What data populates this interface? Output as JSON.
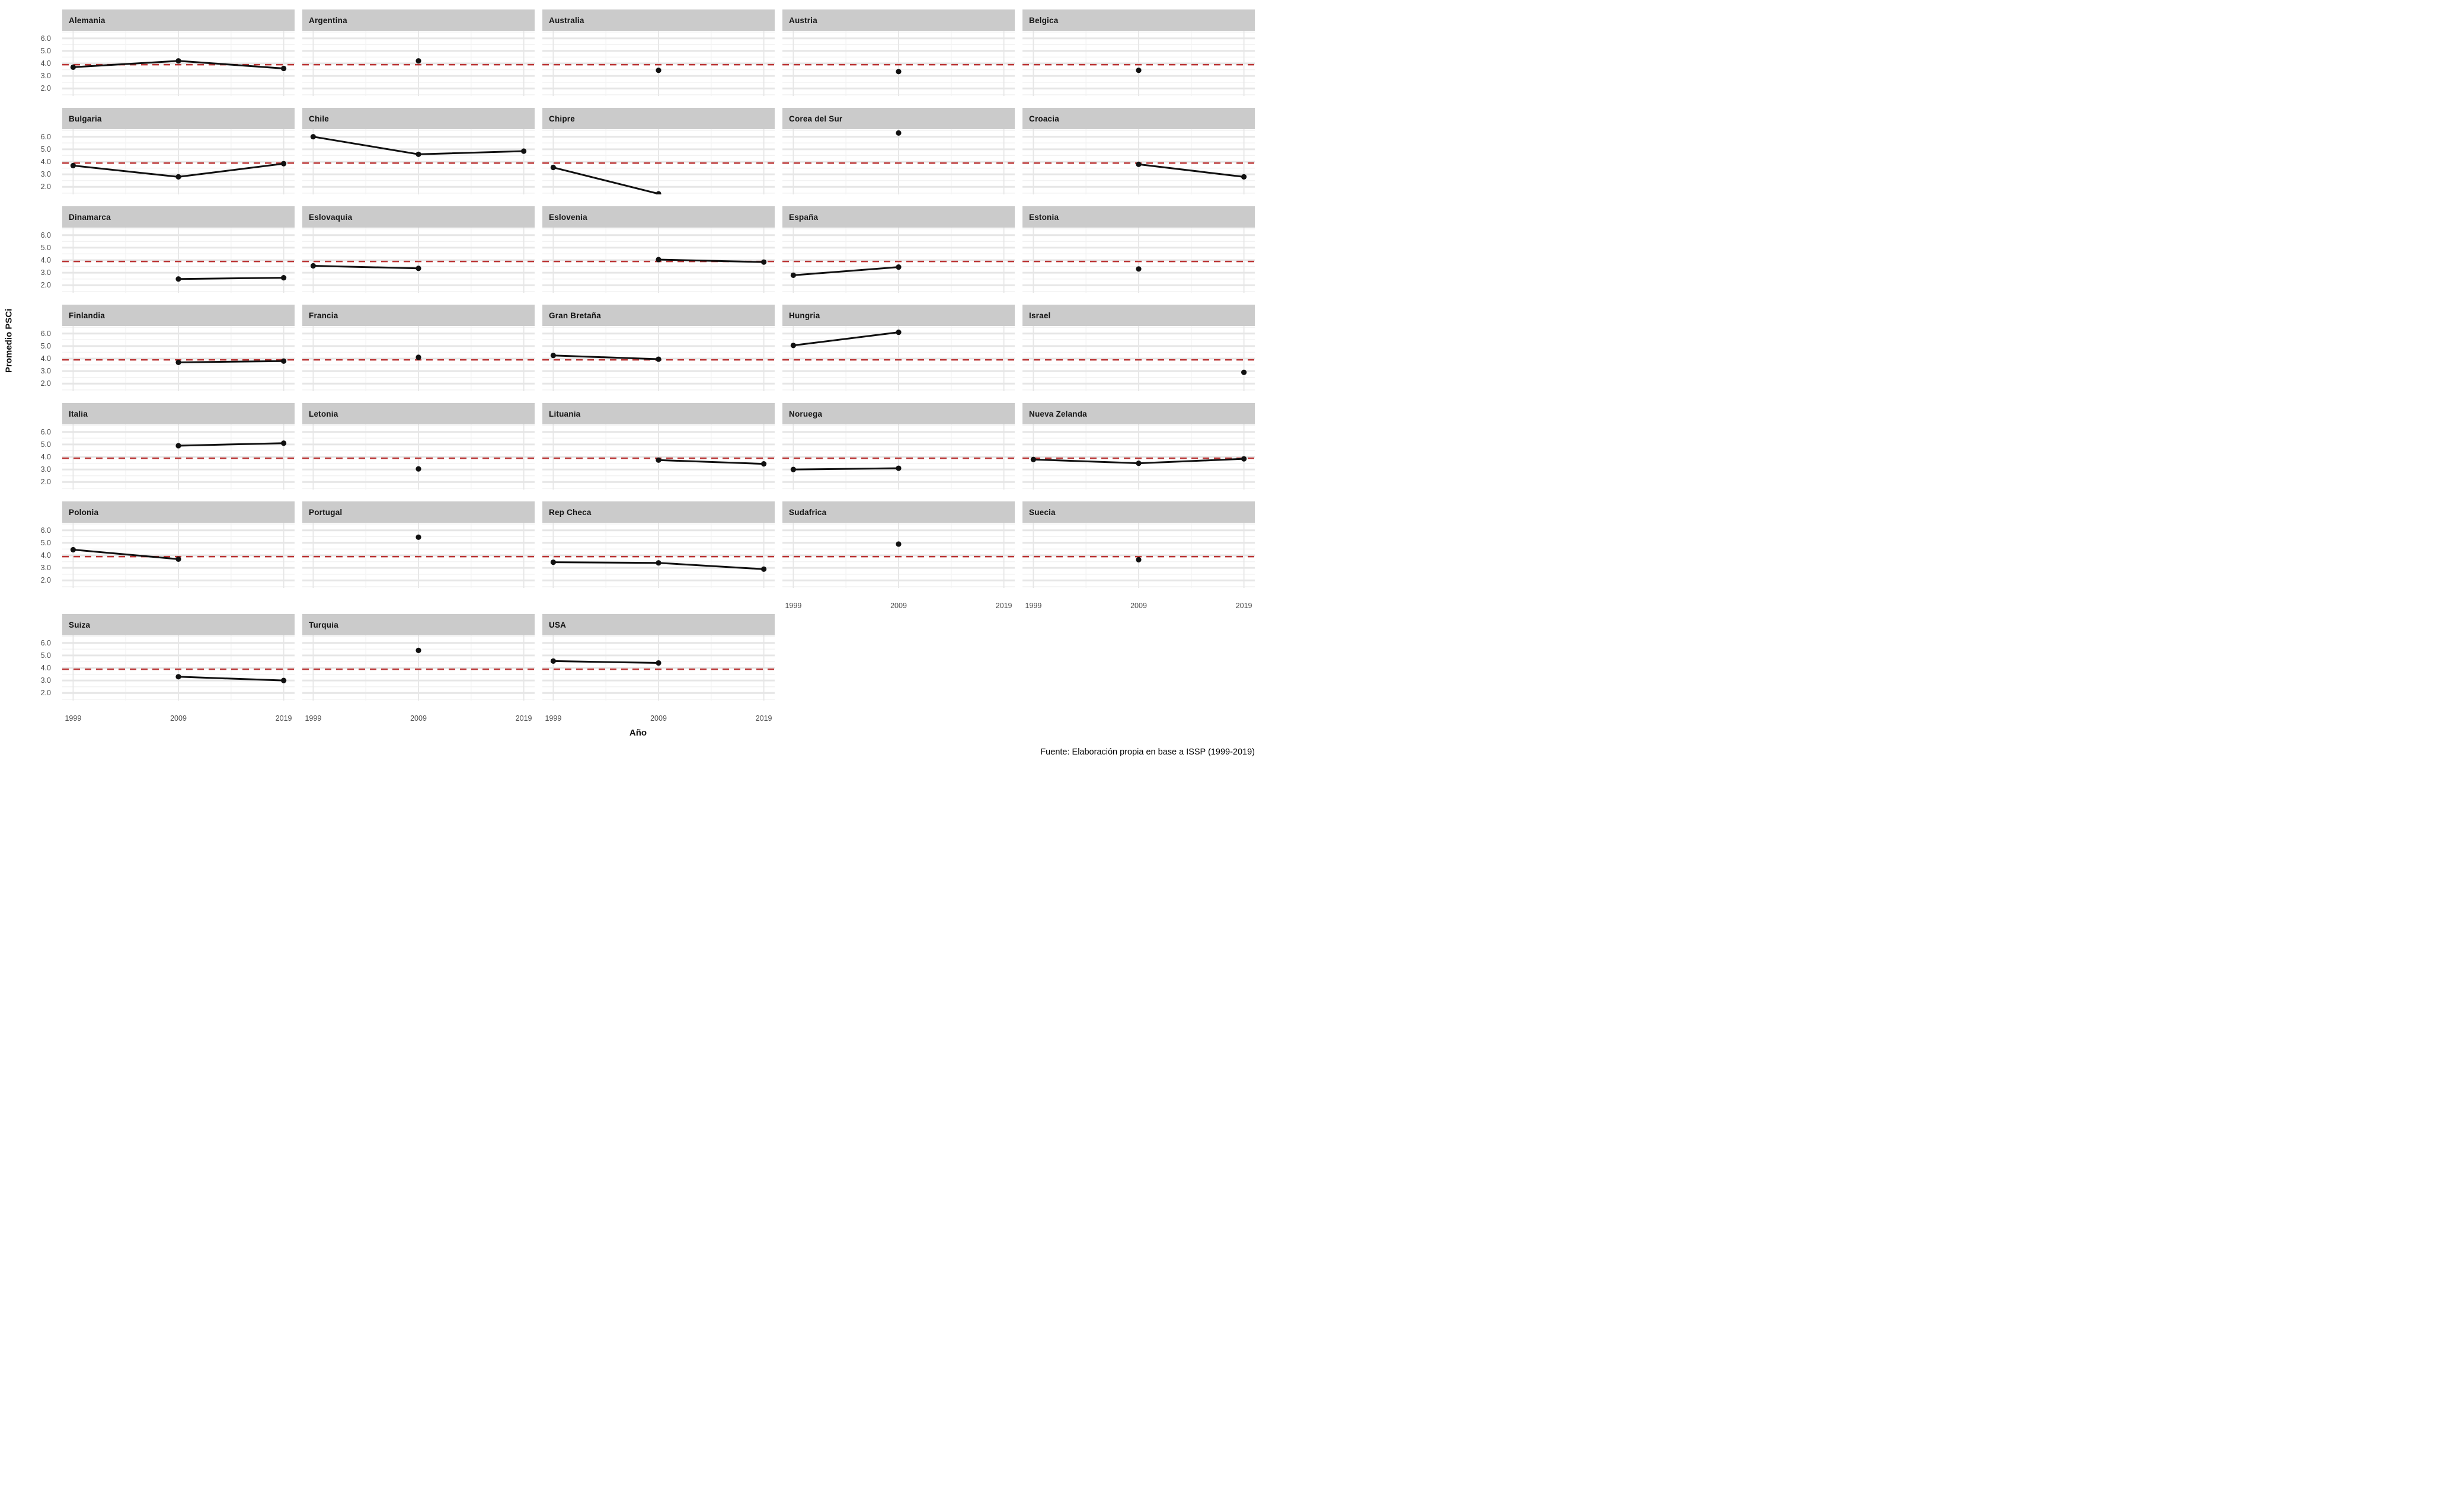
{
  "figure": {
    "y_axis_title": "Promedio PSCi",
    "x_axis_title": "Año",
    "caption": "Fuente: Elaboración propia en base a ISSP (1999-2019)",
    "y_ticks": [
      "6.0",
      "5.0",
      "4.0",
      "3.0",
      "2.0"
    ],
    "x_ticks": [
      "1999",
      "2009",
      "2019"
    ]
  },
  "chart_data": {
    "type": "line",
    "facet_by": "country",
    "x": [
      1999,
      2009,
      2019
    ],
    "xlabel": "Año",
    "ylabel": "Promedio PSCi",
    "ylim": [
      1.4,
      6.6
    ],
    "y_tick_values": [
      6.0,
      5.0,
      4.0,
      3.0,
      2.0
    ],
    "grid": true,
    "reference_line": {
      "y": 3.9,
      "style": "dashed",
      "color": "#bb3434"
    },
    "point_color": "#111111",
    "line_color": "#111111",
    "panels": [
      {
        "name": "Alemania",
        "values": {
          "1999": 3.7,
          "2009": 4.2,
          "2019": 3.6
        }
      },
      {
        "name": "Argentina",
        "values": {
          "2009": 4.2
        }
      },
      {
        "name": "Australia",
        "values": {
          "2009": 3.45
        }
      },
      {
        "name": "Austria",
        "values": {
          "2009": 3.35
        }
      },
      {
        "name": "Belgica",
        "values": {
          "2009": 3.45
        }
      },
      {
        "name": "Bulgaria",
        "values": {
          "1999": 3.7,
          "2009": 2.8,
          "2019": 3.85
        }
      },
      {
        "name": "Chile",
        "values": {
          "1999": 6.0,
          "2009": 4.6,
          "2019": 4.85
        }
      },
      {
        "name": "Chipre",
        "values": {
          "1999": 3.55,
          "2009": 1.45
        }
      },
      {
        "name": "Corea del Sur",
        "values": {
          "2009": 6.3
        }
      },
      {
        "name": "Croacia",
        "values": {
          "2009": 3.8,
          "2019": 2.8
        }
      },
      {
        "name": "Dinamarca",
        "values": {
          "2009": 2.5,
          "2019": 2.6
        }
      },
      {
        "name": "Eslovaquia",
        "values": {
          "1999": 3.55,
          "2009": 3.35
        }
      },
      {
        "name": "Eslovenia",
        "values": {
          "2009": 4.05,
          "2019": 3.85
        }
      },
      {
        "name": "España",
        "values": {
          "1999": 2.8,
          "2009": 3.45
        }
      },
      {
        "name": "Estonia",
        "values": {
          "2009": 3.3
        }
      },
      {
        "name": "Finlandia",
        "values": {
          "2009": 3.7,
          "2019": 3.8
        }
      },
      {
        "name": "Francia",
        "values": {
          "2009": 4.1
        }
      },
      {
        "name": "Gran Bretaña",
        "values": {
          "1999": 4.25,
          "2009": 3.95
        }
      },
      {
        "name": "Hungria",
        "values": {
          "1999": 5.05,
          "2009": 6.1
        }
      },
      {
        "name": "Israel",
        "values": {
          "2019": 2.9
        }
      },
      {
        "name": "Italia",
        "values": {
          "2009": 4.9,
          "2019": 5.1
        }
      },
      {
        "name": "Letonia",
        "values": {
          "2009": 3.05
        }
      },
      {
        "name": "Lituania",
        "values": {
          "2009": 3.75,
          "2019": 3.45
        }
      },
      {
        "name": "Noruega",
        "values": {
          "1999": 3.0,
          "2009": 3.1
        }
      },
      {
        "name": "Nueva Zelanda",
        "values": {
          "1999": 3.8,
          "2009": 3.5,
          "2019": 3.85
        }
      },
      {
        "name": "Polonia",
        "values": {
          "1999": 4.45,
          "2009": 3.7
        }
      },
      {
        "name": "Portugal",
        "values": {
          "2009": 5.45
        }
      },
      {
        "name": "Rep Checa",
        "values": {
          "1999": 3.45,
          "2009": 3.4,
          "2019": 2.9
        }
      },
      {
        "name": "Sudafrica",
        "values": {
          "2009": 4.9
        }
      },
      {
        "name": "Suecia",
        "values": {
          "2009": 3.65
        }
      },
      {
        "name": "Suiza",
        "values": {
          "2009": 3.3,
          "2019": 3.0
        }
      },
      {
        "name": "Turquia",
        "values": {
          "2009": 5.4
        }
      },
      {
        "name": "USA",
        "values": {
          "1999": 4.55,
          "2009": 4.4
        }
      }
    ]
  }
}
